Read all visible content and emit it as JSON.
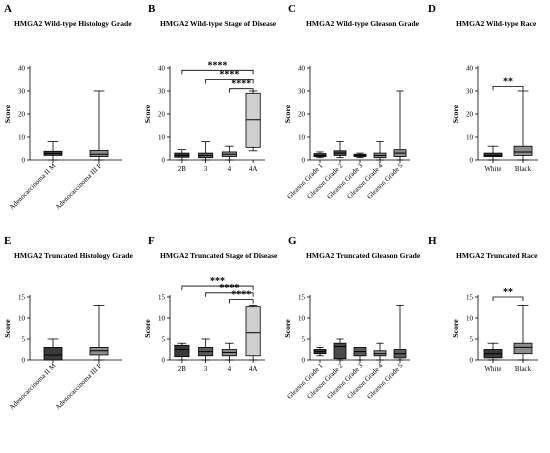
{
  "chart_data": [
    {
      "id": "A",
      "type": "boxplot",
      "panel_label": "A",
      "title": "HMGA2 Wild-type Histology Grade",
      "ylabel": "Score",
      "ylim": [
        0,
        40
      ],
      "yticks": [
        0,
        10,
        20,
        30,
        40
      ],
      "categories": [
        "Adenocarcinoma II M",
        "Adenocarcinoma III P"
      ],
      "tick_rotate": true,
      "boxes": [
        {
          "category": "Adenocarcinoma II M",
          "min": 0,
          "q1": 2,
          "median": 2.8,
          "q3": 3.8,
          "max": 8,
          "fill": "#3a3a3a"
        },
        {
          "category": "Adenocarcinoma III P",
          "min": 0,
          "q1": 1.5,
          "median": 2.5,
          "q3": 4.2,
          "max": 30,
          "fill": "#8c8c8c"
        }
      ],
      "significance": []
    },
    {
      "id": "B",
      "type": "boxplot",
      "panel_label": "B",
      "title": "HMGA2 Wild-type Stage of Disease",
      "ylabel": "Score",
      "ylim": [
        0,
        40
      ],
      "yticks": [
        0,
        10,
        20,
        30,
        40
      ],
      "categories": [
        "2B",
        "3",
        "4",
        "4A"
      ],
      "tick_rotate": false,
      "boxes": [
        {
          "category": "2B",
          "min": 0,
          "q1": 1.2,
          "median": 2,
          "q3": 3,
          "max": 4.5,
          "fill": "#3a3a3a"
        },
        {
          "category": "3",
          "min": 0,
          "q1": 1,
          "median": 2,
          "q3": 3,
          "max": 8,
          "fill": "#5a5a5a"
        },
        {
          "category": "4",
          "min": 0,
          "q1": 1.5,
          "median": 2.5,
          "q3": 3.5,
          "max": 6,
          "fill": "#8c8c8c"
        },
        {
          "category": "4A",
          "min": 4,
          "q1": 5.5,
          "median": 17.5,
          "q3": 29,
          "max": 30,
          "fill": "#cfcfcf"
        }
      ],
      "significance": [
        {
          "from": "2B",
          "to": "4A",
          "label": "****",
          "y": 39
        },
        {
          "from": "3",
          "to": "4A",
          "label": "****",
          "y": 35
        },
        {
          "from": "4",
          "to": "4A",
          "label": "****",
          "y": 31
        }
      ]
    },
    {
      "id": "C",
      "type": "boxplot",
      "panel_label": "C",
      "title": "HMGA2 Wild-type Gleason Grade",
      "ylabel": "Score",
      "ylim": [
        0,
        40
      ],
      "yticks": [
        0,
        10,
        20,
        30,
        40
      ],
      "categories": [
        "Gleason Grade 1",
        "Gleason Grade 2",
        "Gleason Grade 3",
        "Gleason Grade 4",
        "Gleason Grade 5"
      ],
      "tick_rotate": true,
      "boxes": [
        {
          "category": "Gleason Grade 1",
          "min": 1,
          "q1": 1.5,
          "median": 2,
          "q3": 2.8,
          "max": 3.5,
          "fill": "#3a3a3a"
        },
        {
          "category": "Gleason Grade 2",
          "min": 1,
          "q1": 2,
          "median": 3,
          "q3": 4,
          "max": 8,
          "fill": "#4a4a4a"
        },
        {
          "category": "Gleason Grade 3",
          "min": 1,
          "q1": 1.5,
          "median": 2,
          "q3": 2.5,
          "max": 3,
          "fill": "#5a5a5a"
        },
        {
          "category": "Gleason Grade 4",
          "min": 0,
          "q1": 1,
          "median": 2,
          "q3": 3,
          "max": 8,
          "fill": "#8c8c8c"
        },
        {
          "category": "Gleason Grade 5",
          "min": 0,
          "q1": 1.5,
          "median": 3,
          "q3": 4.5,
          "max": 30,
          "fill": "#8c8c8c"
        }
      ],
      "significance": []
    },
    {
      "id": "D",
      "type": "boxplot",
      "panel_label": "D",
      "title": "HMGA2 Wild-type Race",
      "ylabel": "Score",
      "ylim": [
        0,
        40
      ],
      "yticks": [
        0,
        10,
        20,
        30,
        40
      ],
      "categories": [
        "White",
        "Black"
      ],
      "tick_rotate": false,
      "boxes": [
        {
          "category": "White",
          "min": 0,
          "q1": 1.5,
          "median": 2,
          "q3": 3,
          "max": 6,
          "fill": "#3a3a3a"
        },
        {
          "category": "Black",
          "min": 0,
          "q1": 2,
          "median": 3.5,
          "q3": 6,
          "max": 30,
          "fill": "#8c8c8c"
        }
      ],
      "significance": [
        {
          "from": "White",
          "to": "Black",
          "label": "**",
          "y": 32
        }
      ]
    },
    {
      "id": "E",
      "type": "boxplot",
      "panel_label": "E",
      "title": "HMGA2 Truncated Histology Grade",
      "ylabel": "Score",
      "ylim": [
        0,
        15
      ],
      "yticks": [
        0,
        5,
        10,
        15
      ],
      "categories": [
        "Adenocarcinoma II M",
        "Adenocarcinoma III P"
      ],
      "tick_rotate": true,
      "boxes": [
        {
          "category": "Adenocarcinoma II M",
          "min": 0,
          "q1": 0,
          "median": 1.2,
          "q3": 3,
          "max": 5,
          "fill": "#3a3a3a"
        },
        {
          "category": "Adenocarcinoma III P",
          "min": 0,
          "q1": 1.2,
          "median": 2.2,
          "q3": 3,
          "max": 13,
          "fill": "#8c8c8c"
        }
      ],
      "significance": []
    },
    {
      "id": "F",
      "type": "boxplot",
      "panel_label": "F",
      "title": "HMGA2 Truncated Stage of Disease",
      "ylabel": "Score",
      "ylim": [
        0,
        15
      ],
      "yticks": [
        0,
        5,
        10,
        15
      ],
      "categories": [
        "2B",
        "3",
        "4",
        "4A"
      ],
      "tick_rotate": false,
      "boxes": [
        {
          "category": "2B",
          "min": 0,
          "q1": 0.8,
          "median": 2.5,
          "q3": 3.5,
          "max": 4,
          "fill": "#3a3a3a"
        },
        {
          "category": "3",
          "min": 0,
          "q1": 1,
          "median": 2,
          "q3": 3,
          "max": 5,
          "fill": "#5a5a5a"
        },
        {
          "category": "4",
          "min": 0,
          "q1": 1,
          "median": 1.8,
          "q3": 2.5,
          "max": 4,
          "fill": "#8c8c8c"
        },
        {
          "category": "4A",
          "min": 0,
          "q1": 1,
          "median": 6.5,
          "q3": 12.7,
          "max": 13,
          "fill": "#cfcfcf"
        }
      ],
      "significance": [
        {
          "from": "2B",
          "to": "4A",
          "label": "***",
          "y": 17.6
        },
        {
          "from": "3",
          "to": "4A",
          "label": "****",
          "y": 16
        },
        {
          "from": "4",
          "to": "4A",
          "label": "****",
          "y": 14.4
        }
      ]
    },
    {
      "id": "G",
      "type": "boxplot",
      "panel_label": "G",
      "title": "HMGA2 Truncated Gleason Grade",
      "ylabel": "Score",
      "ylim": [
        0,
        15
      ],
      "yticks": [
        0,
        5,
        10,
        15
      ],
      "categories": [
        "Gleason Grade 1",
        "Gleason Grade 2",
        "Gleason Grade 3",
        "Gleason Grade 4",
        "Gleason Grade 5"
      ],
      "tick_rotate": true,
      "boxes": [
        {
          "category": "Gleason Grade 1",
          "min": 1,
          "q1": 1.5,
          "median": 2,
          "q3": 2.5,
          "max": 3,
          "fill": "#3a3a3a"
        },
        {
          "category": "Gleason Grade 2",
          "min": 0,
          "q1": 0.3,
          "median": 3.2,
          "q3": 4,
          "max": 5,
          "fill": "#4a4a4a"
        },
        {
          "category": "Gleason Grade 3",
          "min": 0,
          "q1": 1,
          "median": 2,
          "q3": 3,
          "max": 3,
          "fill": "#5a5a5a"
        },
        {
          "category": "Gleason Grade 4",
          "min": 0,
          "q1": 1,
          "median": 1.5,
          "q3": 2.2,
          "max": 4,
          "fill": "#8c8c8c"
        },
        {
          "category": "Gleason Grade 5",
          "min": 0,
          "q1": 0.5,
          "median": 1.5,
          "q3": 2.5,
          "max": 13,
          "fill": "#5a5a5a"
        }
      ],
      "significance": []
    },
    {
      "id": "H",
      "type": "boxplot",
      "panel_label": "H",
      "title": "HMGA2 Truncated  Race",
      "ylabel": "Score",
      "ylim": [
        0,
        15
      ],
      "yticks": [
        0,
        5,
        10,
        15
      ],
      "categories": [
        "White",
        "Black"
      ],
      "tick_rotate": false,
      "boxes": [
        {
          "category": "White",
          "min": 0,
          "q1": 0.5,
          "median": 1.5,
          "q3": 2.5,
          "max": 4,
          "fill": "#3a3a3a"
        },
        {
          "category": "Black",
          "min": 0,
          "q1": 1.5,
          "median": 3,
          "q3": 4,
          "max": 13,
          "fill": "#8c8c8c"
        }
      ],
      "significance": [
        {
          "from": "White",
          "to": "Black",
          "label": "**",
          "y": 15
        }
      ]
    }
  ]
}
